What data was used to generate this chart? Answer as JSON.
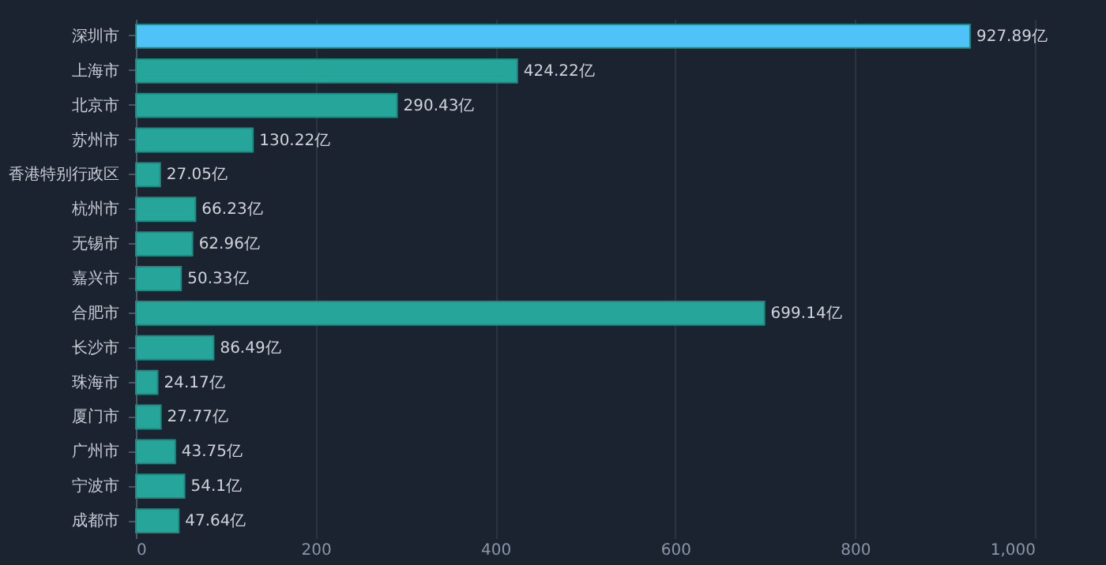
{
  "chart_data": {
    "type": "bar",
    "orientation": "horizontal",
    "categories": [
      "深圳市",
      "上海市",
      "北京市",
      "苏州市",
      "香港特别行政区",
      "杭州市",
      "无锡市",
      "嘉兴市",
      "合肥市",
      "长沙市",
      "珠海市",
      "厦门市",
      "广州市",
      "宁波市",
      "成都市"
    ],
    "values": [
      927.89,
      424.22,
      290.43,
      130.22,
      27.05,
      66.23,
      62.96,
      50.33,
      699.14,
      86.49,
      24.17,
      27.77,
      43.75,
      54.1,
      47.64
    ],
    "value_labels": [
      "927.89亿",
      "424.22亿",
      "290.43亿",
      "130.22亿",
      "27.05亿",
      "66.23亿",
      "62.96亿",
      "50.33亿",
      "699.14亿",
      "86.49亿",
      "24.17亿",
      "27.77亿",
      "43.75亿",
      "54.1亿",
      "47.64亿"
    ],
    "colors": [
      "#4fc3f7",
      "#26a69a",
      "#26a69a",
      "#26a69a",
      "#26a69a",
      "#26a69a",
      "#26a69a",
      "#26a69a",
      "#26a69a",
      "#26a69a",
      "#26a69a",
      "#26a69a",
      "#26a69a",
      "#26a69a",
      "#26a69a"
    ],
    "xlim": [
      0,
      1000
    ],
    "xticks": [
      0,
      200,
      400,
      600,
      800,
      {
        "value": 1000,
        "label": "1,000"
      }
    ],
    "grid": "x"
  }
}
